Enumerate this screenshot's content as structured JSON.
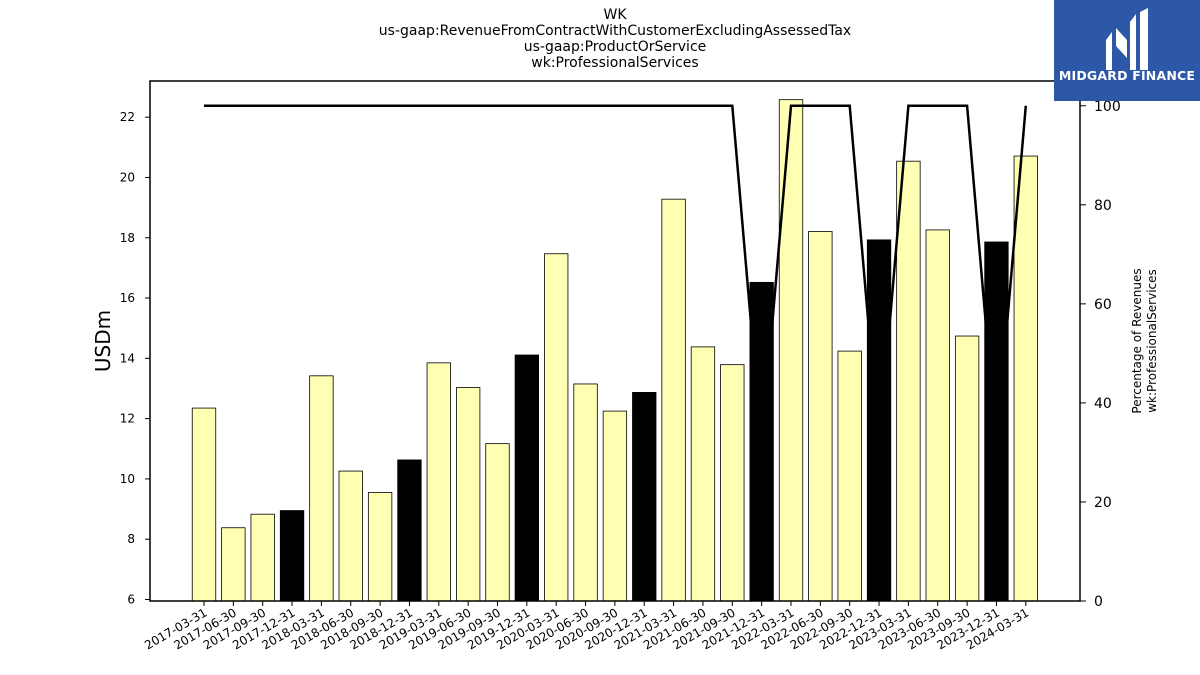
{
  "chart_data": {
    "type": "bar",
    "title": [
      "WK",
      "us-gaap:RevenueFromContractWithCustomerExcludingAssessedTax",
      "us-gaap:ProductOrService",
      "wk:ProfessionalServices"
    ],
    "ylabel": "USDm",
    "y2label": [
      "Percentage of Revenues",
      "wk:ProfessionalServices"
    ],
    "ylim": [
      5.95,
      23.2
    ],
    "y2lim": [
      0,
      105
    ],
    "yticks": [
      6,
      8,
      10,
      12,
      14,
      16,
      18,
      20,
      22
    ],
    "y2ticks": [
      0,
      20,
      40,
      60,
      80,
      100
    ],
    "categories": [
      "2017-03-31",
      "2017-06-30",
      "2017-09-30",
      "2017-12-31",
      "2018-03-31",
      "2018-06-30",
      "2018-09-30",
      "2018-12-31",
      "2019-03-31",
      "2019-06-30",
      "2019-09-30",
      "2019-12-31",
      "2020-03-31",
      "2020-06-30",
      "2020-09-30",
      "2020-12-31",
      "2021-03-31",
      "2021-06-30",
      "2021-09-30",
      "2021-12-31",
      "2022-03-31",
      "2022-06-30",
      "2022-09-30",
      "2022-12-31",
      "2023-03-31",
      "2023-06-30",
      "2023-09-30",
      "2023-12-31",
      "2024-03-31"
    ],
    "values": [
      12.35,
      8.38,
      8.83,
      8.95,
      13.42,
      10.26,
      9.55,
      10.63,
      13.85,
      13.03,
      11.17,
      14.11,
      17.47,
      13.15,
      12.25,
      12.87,
      19.28,
      14.38,
      13.79,
      16.52,
      22.58,
      18.21,
      14.24,
      17.93,
      20.54,
      18.26,
      14.74,
      17.86,
      20.71
    ],
    "highlight": [
      false,
      false,
      false,
      true,
      false,
      false,
      false,
      true,
      false,
      false,
      false,
      true,
      false,
      false,
      false,
      true,
      false,
      false,
      false,
      true,
      false,
      false,
      false,
      true,
      false,
      false,
      false,
      true,
      false
    ],
    "percentage": [
      100,
      100,
      100,
      100,
      100,
      100,
      100,
      100,
      100,
      100,
      100,
      100,
      100,
      100,
      100,
      100,
      100,
      100,
      100,
      31,
      100,
      100,
      100,
      31,
      100,
      100,
      100,
      31,
      100
    ],
    "colors": {
      "bar": "#ffffb3",
      "bar_highlight": "#000000",
      "line": "#000000",
      "edge": "#000000"
    }
  },
  "logo": {
    "text": "MIDGARD FINANCE",
    "background": "#2d58a8"
  }
}
